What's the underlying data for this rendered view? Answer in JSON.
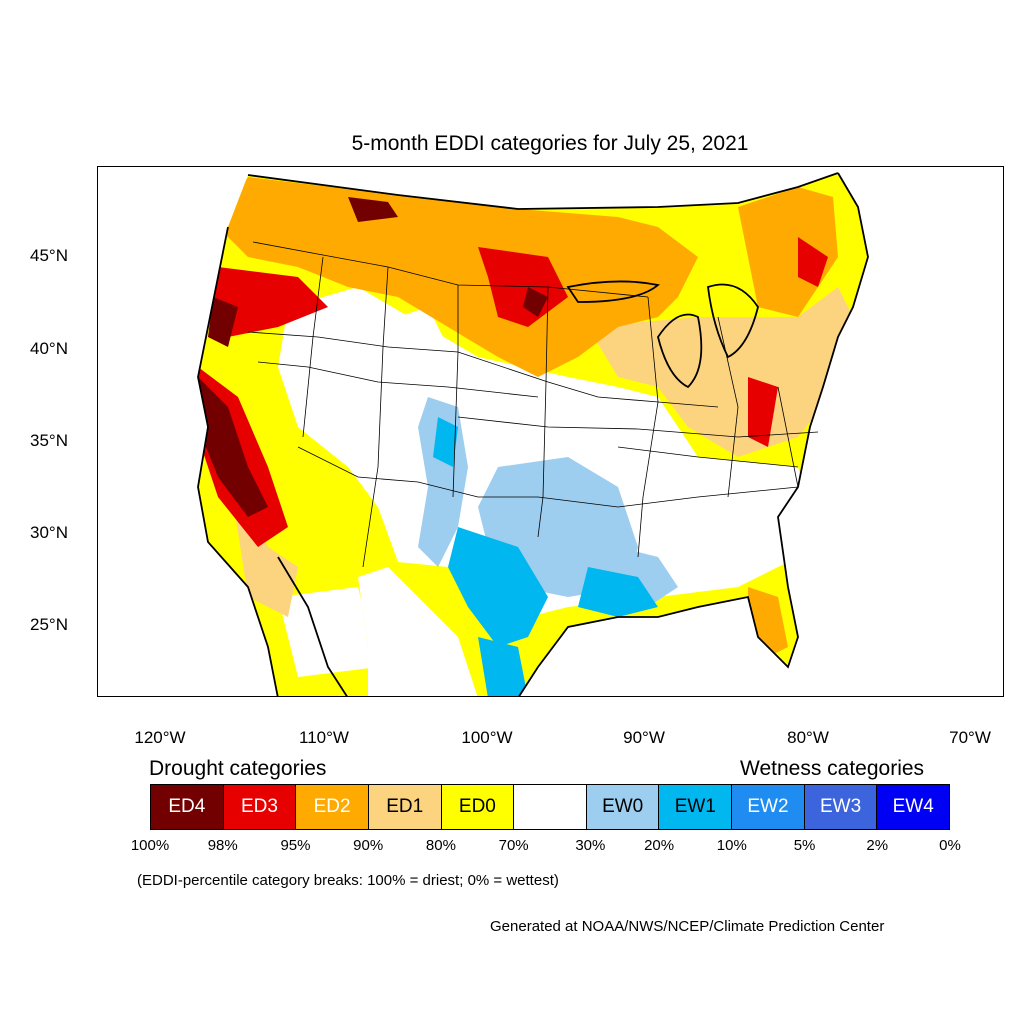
{
  "title": "5-month EDDI categories for July 25, 2021",
  "axes": {
    "lat_labels": [
      "45°N",
      "40°N",
      "35°N",
      "30°N",
      "25°N"
    ],
    "lon_labels": [
      "120°W",
      "110°W",
      "100°W",
      "90°W",
      "80°W",
      "70°W"
    ]
  },
  "legend": {
    "drought_title": "Drought categories",
    "wetness_title": "Wetness categories",
    "categories": [
      {
        "label": "ED4",
        "color": "#730000"
      },
      {
        "label": "ED3",
        "color": "#e60000"
      },
      {
        "label": "ED2",
        "color": "#ffaa00"
      },
      {
        "label": "ED1",
        "color": "#fcd37f"
      },
      {
        "label": "ED0",
        "color": "#ffff00"
      },
      {
        "label": "",
        "color": "#ffffff"
      },
      {
        "label": "EW0",
        "color": "#9dcef0"
      },
      {
        "label": "EW1",
        "color": "#00b7f0"
      },
      {
        "label": "EW2",
        "color": "#1e8cf0"
      },
      {
        "label": "EW3",
        "color": "#3c64dc"
      },
      {
        "label": "EW4",
        "color": "#0000f5"
      }
    ],
    "breaks": [
      "100%",
      "98%",
      "95%",
      "90%",
      "80%",
      "70%",
      "30%",
      "20%",
      "10%",
      "5%",
      "2%",
      "0%"
    ]
  },
  "note": "(EDDI-percentile category breaks: 100% = driest; 0% = wettest)",
  "credit": "Generated at NOAA/NWS/NCEP/Climate Prediction Center"
}
